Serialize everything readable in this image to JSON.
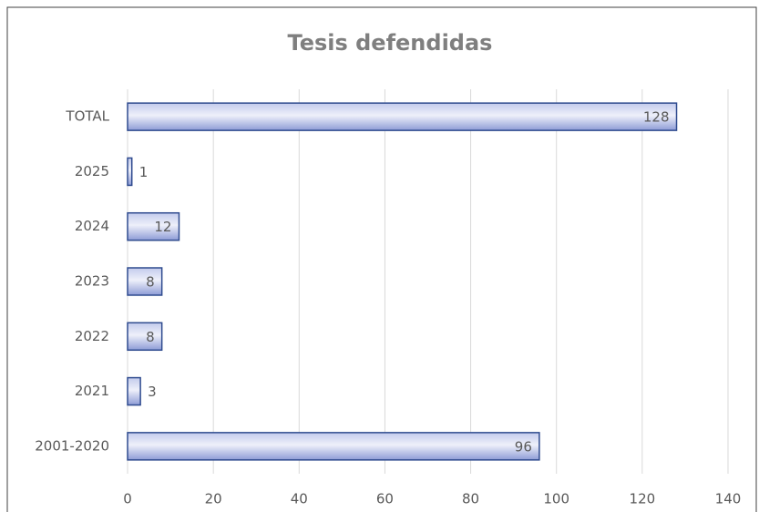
{
  "chart_data": {
    "type": "hbar",
    "title": "Tesis defendidas",
    "categories": [
      "TOTAL",
      "2025",
      "2024",
      "2023",
      "2022",
      "2021",
      "2001-2020"
    ],
    "values": [
      128,
      1,
      12,
      8,
      8,
      3,
      96
    ],
    "color": "#8e9cd6",
    "xlim": [
      0,
      140
    ],
    "xticks": [
      0,
      20,
      40,
      60,
      80,
      100,
      120,
      140
    ],
    "grid": true
  }
}
